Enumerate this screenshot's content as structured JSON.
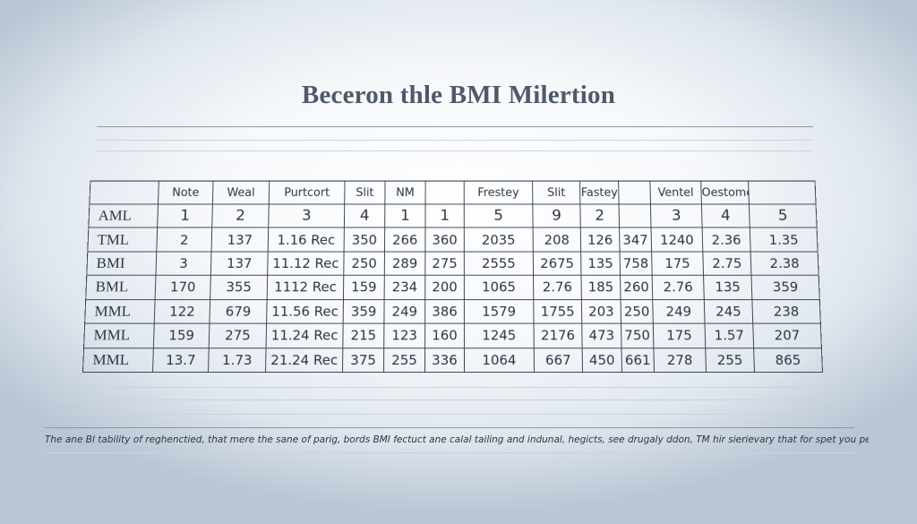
{
  "document": {
    "title": "Beceron thle BMI Milertion",
    "footnote": "The ane Bl tability of reghenctied, that mere the sane of parig, bords BMI fectuct ane calal tailing and indunal, hegicts, see drugaly ddon, TM hir sierievary that for spet you perpest off"
  },
  "table": {
    "headers": [
      "",
      "Note",
      "Weal",
      "Purtcort",
      "Slit",
      "NM",
      "",
      "Frestey",
      "Slit",
      "Fastey",
      "",
      "Ventel",
      "Oestomer",
      ""
    ],
    "rows": [
      [
        "AML",
        "1",
        "2",
        "3",
        "4",
        "1",
        "1",
        "5",
        "9",
        "2",
        "",
        "3",
        "4",
        "5"
      ],
      [
        "TML",
        "2",
        "137",
        "1.16  Rec",
        "350",
        "266",
        "360",
        "2035",
        "208",
        "126",
        "347",
        "1240",
        "2.36",
        "1.35"
      ],
      [
        "BMI",
        "3",
        "137",
        "11.12  Rec",
        "250",
        "289",
        "275",
        "2555",
        "2675",
        "135",
        "758",
        "175",
        "2.75",
        "2.38"
      ],
      [
        "BML",
        "170",
        "355",
        "1112  Rec",
        "159",
        "234",
        "200",
        "1065",
        "2.76",
        "185",
        "260",
        "2.76",
        "135",
        "359"
      ],
      [
        "MML",
        "122",
        "679",
        "11.56  Rec",
        "359",
        "249",
        "386",
        "1579",
        "1755",
        "203",
        "250",
        "249",
        "245",
        "238"
      ],
      [
        "MML",
        "159",
        "275",
        "11.24  Rec",
        "215",
        "123",
        "160",
        "1245",
        "2176",
        "473",
        "750",
        "175",
        "1.57",
        "207"
      ],
      [
        "MML",
        "13.7",
        "1.73",
        "21.24  Rec",
        "375",
        "255",
        "336",
        "1064",
        "667",
        "450",
        "661",
        "278",
        "255",
        "865"
      ]
    ]
  }
}
